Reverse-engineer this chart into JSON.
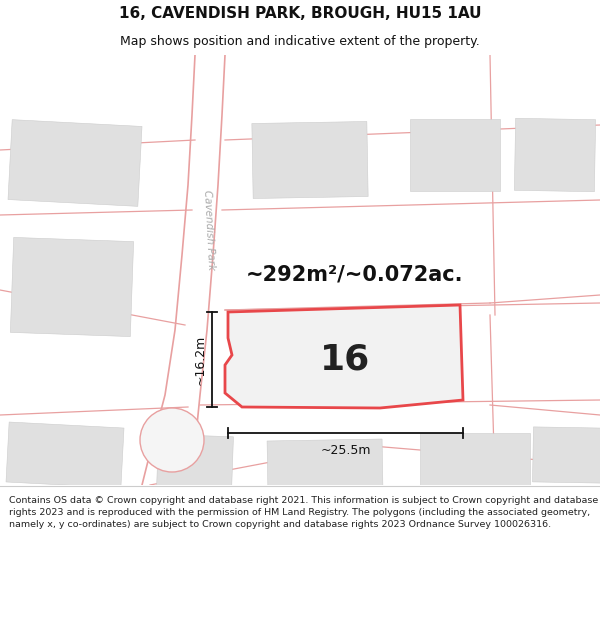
{
  "title": "16, CAVENDISH PARK, BROUGH, HU15 1AU",
  "subtitle": "Map shows position and indicative extent of the property.",
  "footer": "Contains OS data © Crown copyright and database right 2021. This information is subject to Crown copyright and database rights 2023 and is reproduced with the permission of HM Land Registry. The polygons (including the associated geometry, namely x, y co-ordinates) are subject to Crown copyright and database rights 2023 Ordnance Survey 100026316.",
  "area_label": "~292m²/~0.072ac.",
  "width_label": "~25.5m",
  "height_label": "~16.2m",
  "number_label": "16",
  "road_label": "Cavendish Park",
  "bg_color": "#ffffff",
  "footer_bg": "#f0f0f0",
  "plot_color": "#e8474a",
  "building_fill": "#e0e0e0",
  "road_line_color": "#e8a0a0",
  "dim_line_color": "#111111",
  "title_fontsize": 11,
  "subtitle_fontsize": 9,
  "area_fontsize": 15,
  "num_fontsize": 26,
  "dim_fontsize": 9,
  "road_fontsize": 7.5,
  "footer_fontsize": 6.8
}
